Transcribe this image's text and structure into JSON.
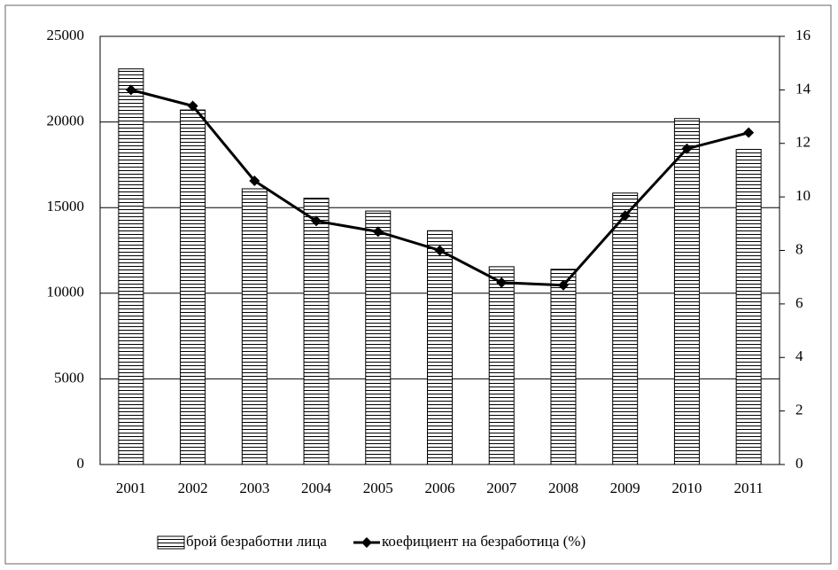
{
  "chart_data": {
    "type": "bar_line",
    "categories": [
      "2001",
      "2002",
      "2003",
      "2004",
      "2005",
      "2006",
      "2007",
      "2008",
      "2009",
      "2010",
      "2011"
    ],
    "series": [
      {
        "name": "брой безработни лица",
        "type": "bar",
        "color": "#000000",
        "values": [
          23100,
          20700,
          16100,
          15550,
          14800,
          13650,
          11550,
          11400,
          15850,
          20200,
          18400
        ]
      },
      {
        "name": "коефициент  на безработица (%)",
        "type": "line",
        "axis": "y2",
        "color": "#000000",
        "values": [
          14.0,
          13.4,
          10.6,
          9.1,
          8.7,
          8.0,
          6.8,
          6.7,
          9.3,
          11.8,
          12.4
        ]
      }
    ],
    "ylim": [
      0,
      25000
    ],
    "yticks": [
      0,
      5000,
      10000,
      15000,
      20000,
      25000
    ],
    "y2lim": [
      0,
      16
    ],
    "y2ticks": [
      0,
      2,
      4,
      6,
      8,
      10,
      12,
      14,
      16
    ],
    "grid": true,
    "legend": "bottom"
  }
}
